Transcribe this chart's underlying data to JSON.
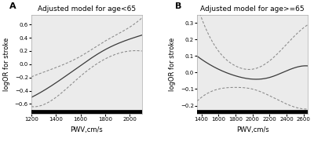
{
  "panel_A": {
    "title": "Adjusted model for age<65",
    "xlabel": "PWV,cm/s",
    "ylabel": "logOR for stroke",
    "xlim": [
      1200,
      2100
    ],
    "ylim": [
      -0.75,
      0.75
    ],
    "xticks": [
      1200,
      1400,
      1600,
      1800,
      2000
    ],
    "yticks": [
      -0.6,
      -0.4,
      -0.2,
      0.0,
      0.2,
      0.4,
      0.6
    ],
    "label": "A",
    "main_pts": [
      [
        1200,
        -0.5
      ],
      [
        1400,
        -0.28
      ],
      [
        1600,
        -0.02
      ],
      [
        1800,
        0.22
      ],
      [
        2000,
        0.38
      ],
      [
        2100,
        0.44
      ]
    ],
    "upper_pts": [
      [
        1200,
        -0.19
      ],
      [
        1400,
        -0.05
      ],
      [
        1600,
        0.12
      ],
      [
        1800,
        0.35
      ],
      [
        2000,
        0.56
      ],
      [
        2100,
        0.7
      ]
    ],
    "lower_pts": [
      [
        1200,
        -0.64
      ],
      [
        1400,
        -0.5
      ],
      [
        1600,
        -0.18
      ],
      [
        1800,
        0.08
      ],
      [
        2000,
        0.2
      ],
      [
        2100,
        0.2
      ]
    ]
  },
  "panel_B": {
    "title": "Adjusted model for age>=65",
    "xlabel": "PWV,cm/s",
    "ylabel": "logOR for stroke",
    "xlim": [
      1350,
      2650
    ],
    "ylim": [
      -0.25,
      0.35
    ],
    "xticks": [
      1400,
      1600,
      1800,
      2000,
      2200,
      2400,
      2600
    ],
    "yticks": [
      -0.2,
      -0.1,
      0.0,
      0.1,
      0.2,
      0.3
    ],
    "label": "B",
    "main_pts": [
      [
        1400,
        0.08
      ],
      [
        1600,
        0.02
      ],
      [
        1800,
        -0.02
      ],
      [
        2000,
        -0.04
      ],
      [
        2200,
        -0.03
      ],
      [
        2400,
        0.01
      ],
      [
        2600,
        0.04
      ]
    ],
    "upper_pts": [
      [
        1400,
        0.33
      ],
      [
        1600,
        0.13
      ],
      [
        1800,
        0.04
      ],
      [
        2000,
        0.02
      ],
      [
        2200,
        0.07
      ],
      [
        2400,
        0.17
      ],
      [
        2600,
        0.27
      ]
    ],
    "lower_pts": [
      [
        1400,
        -0.15
      ],
      [
        1600,
        -0.1
      ],
      [
        1800,
        -0.09
      ],
      [
        2000,
        -0.1
      ],
      [
        2200,
        -0.14
      ],
      [
        2400,
        -0.19
      ],
      [
        2600,
        -0.22
      ]
    ]
  },
  "line_color": "#3a3a3a",
  "ci_color": "#888888",
  "bg_color": "#ebebeb",
  "bottom_bar_color": "#000000"
}
